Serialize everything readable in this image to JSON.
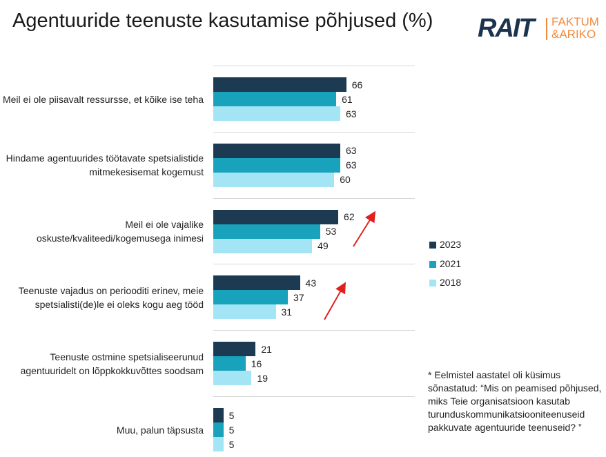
{
  "chart_data": {
    "type": "bar",
    "orientation": "horizontal",
    "title": "Agentuuride teenuste kasutamise põhjused (%)",
    "logo": {
      "name": "RAIT",
      "line1": "FAKTUM",
      "line2": "&ARIKO"
    },
    "categories": [
      "Meil ei ole piisavalt ressursse, et kõike ise teha",
      "Hindame agentuurides töötavate spetsialistide mitmekesisemat kogemust",
      "Meil ei ole vajalike oskuste/kvaliteedi/kogemusega inimesi",
      "Teenuste vajadus on periooditi erinev, meie spetsialisti(de)le ei oleks kogu aeg tööd",
      "Teenuste ostmine spetsialiseerunud agentuuridelt on lõppkokkuvõttes soodsam",
      "Muu, palun täpsusta"
    ],
    "series": [
      {
        "name": "2023",
        "color": "#1c3a52",
        "values": [
          66,
          63,
          62,
          43,
          21,
          5
        ]
      },
      {
        "name": "2021",
        "color": "#18a2bb",
        "values": [
          61,
          63,
          53,
          37,
          16,
          5
        ]
      },
      {
        "name": "2018",
        "color": "#a3e5f5",
        "values": [
          63,
          60,
          49,
          31,
          19,
          5
        ]
      }
    ],
    "xlim": [
      0,
      100
    ],
    "footnote": "* Eelmistel aastatel oli küsimus sõnastatud: “Mis on peamised põhjused, miks Teie organisatsioon kasutab turunduskommunikatsiooniteenuseid pakkuvate agentuuride teenuseid? ”"
  }
}
